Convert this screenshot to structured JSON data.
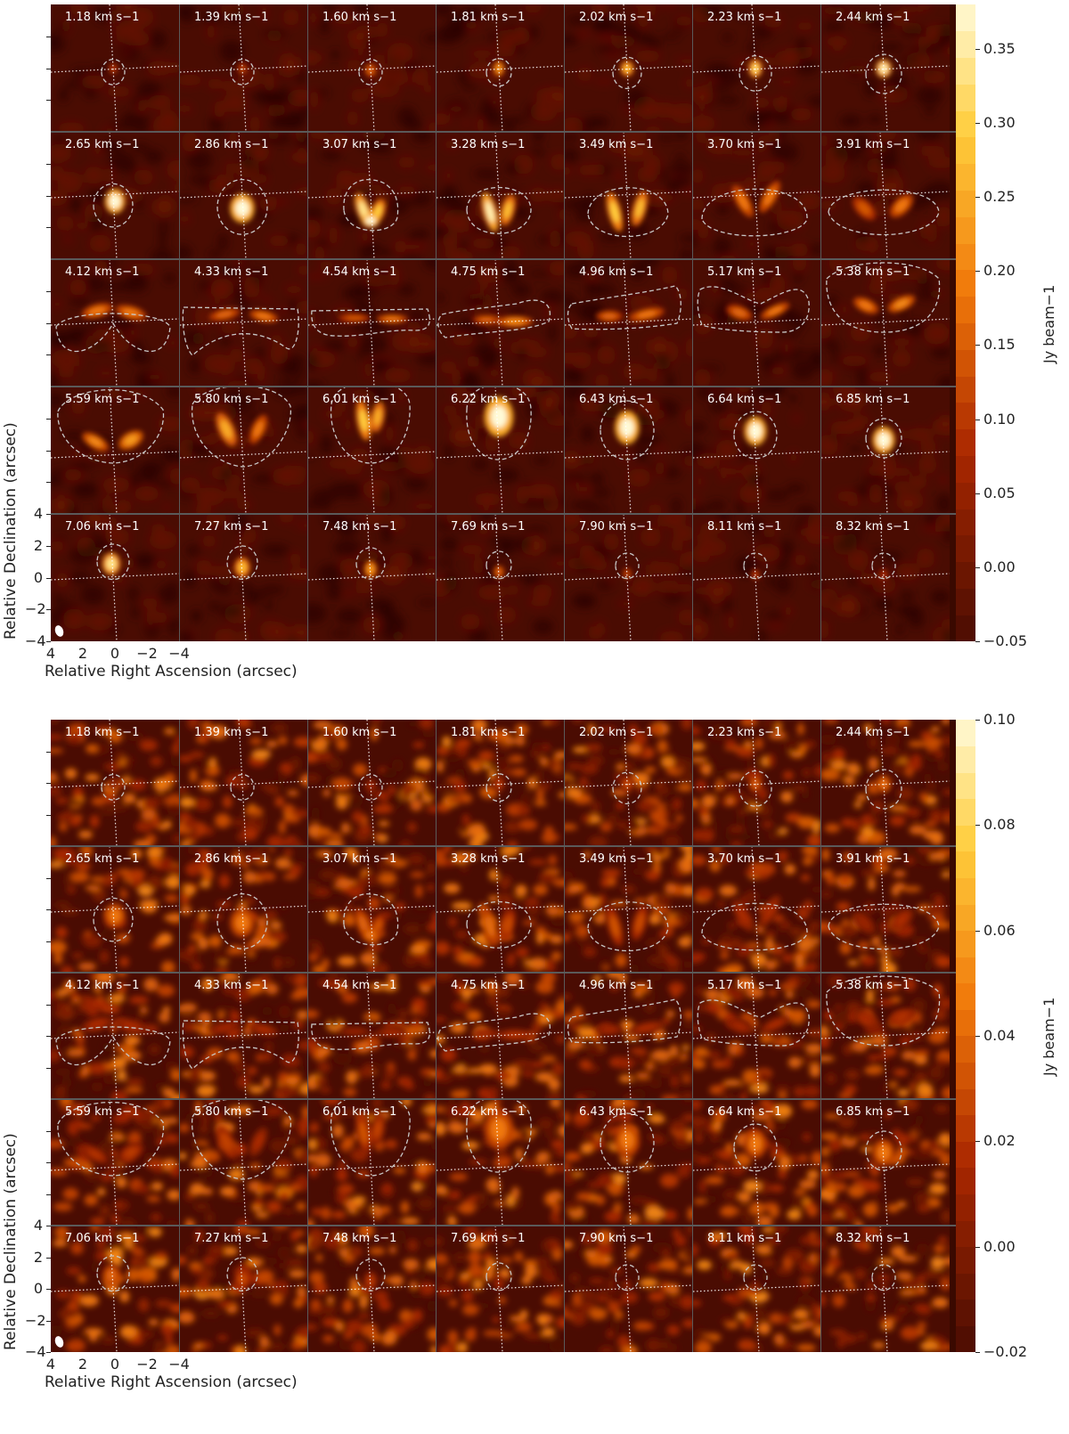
{
  "figures": [
    {
      "colorbar": {
        "label": "Jy beam$^{-1}$",
        "label_text": "Jy beam−1",
        "ticks": [
          "0.35",
          "0.30",
          "0.25",
          "0.20",
          "0.15",
          "0.10",
          "0.05",
          "0.00",
          "−0.05"
        ],
        "tick_values": [
          0.35,
          0.3,
          0.25,
          0.2,
          0.15,
          0.1,
          0.05,
          0.0,
          -0.05
        ],
        "range": [
          -0.05,
          0.38
        ]
      },
      "noise": "low"
    },
    {
      "colorbar": {
        "label_text": "Jy beam−1",
        "ticks": [
          "0.10",
          "0.08",
          "0.06",
          "0.04",
          "0.02",
          "0.00",
          "−0.02"
        ],
        "tick_values": [
          0.1,
          0.08,
          0.06,
          0.04,
          0.02,
          0.0,
          -0.02
        ],
        "range": [
          -0.02,
          0.1
        ]
      },
      "noise": "high"
    }
  ],
  "channels": [
    "1.18 km s−1",
    "1.39 km s−1",
    "1.60 km s−1",
    "1.81 km s−1",
    "2.02 km s−1",
    "2.23 km s−1",
    "2.44 km s−1",
    "2.65 km s−1",
    "2.86 km s−1",
    "3.07 km s−1",
    "3.28 km s−1",
    "3.49 km s−1",
    "3.70 km s−1",
    "3.91 km s−1",
    "4.12 km s−1",
    "4.33 km s−1",
    "4.54 km s−1",
    "4.75 km s−1",
    "4.96 km s−1",
    "5.17 km s−1",
    "5.38 km s−1",
    "5.59 km s−1",
    "5.80 km s−1",
    "6.01 km s−1",
    "6.22 km s−1",
    "6.43 km s−1",
    "6.64 km s−1",
    "6.85 km s−1",
    "7.06 km s−1",
    "7.27 km s−1",
    "7.48 km s−1",
    "7.69 km s−1",
    "7.90 km s−1",
    "8.11 km s−1",
    "8.32 km s−1"
  ],
  "axes": {
    "xlabel": "Relative Right Ascension (arcsec)",
    "ylabel": "Relative Declination (arcsec)",
    "xticks": [
      "4",
      "2",
      "0",
      "−2",
      "−4"
    ],
    "yticks": [
      "4",
      "2",
      "0",
      "−2",
      "−4"
    ]
  },
  "chart_data": {
    "type": "heatmap",
    "xlabel": "Relative Right Ascension (arcsec)",
    "ylabel": "Relative Declination (arcsec)",
    "xlim": [
      4,
      -4
    ],
    "ylim": [
      -4,
      4
    ],
    "velocities_km_s": [
      1.18,
      1.39,
      1.6,
      1.81,
      2.02,
      2.23,
      2.44,
      2.65,
      2.86,
      3.07,
      3.28,
      3.49,
      3.7,
      3.91,
      4.12,
      4.33,
      4.54,
      4.75,
      4.96,
      5.17,
      5.38,
      5.59,
      5.8,
      6.01,
      6.22,
      6.43,
      6.64,
      6.85,
      7.06,
      7.27,
      7.48,
      7.69,
      7.9,
      8.11,
      8.32
    ],
    "colorbar_ranges": [
      [
        -0.05,
        0.38
      ],
      [
        -0.02,
        0.1
      ]
    ],
    "colormap": "afmhot"
  },
  "colors": {
    "panel_bg": "#4a0c02",
    "bright": "#ffe27a",
    "contour": "#c8c8c8"
  }
}
